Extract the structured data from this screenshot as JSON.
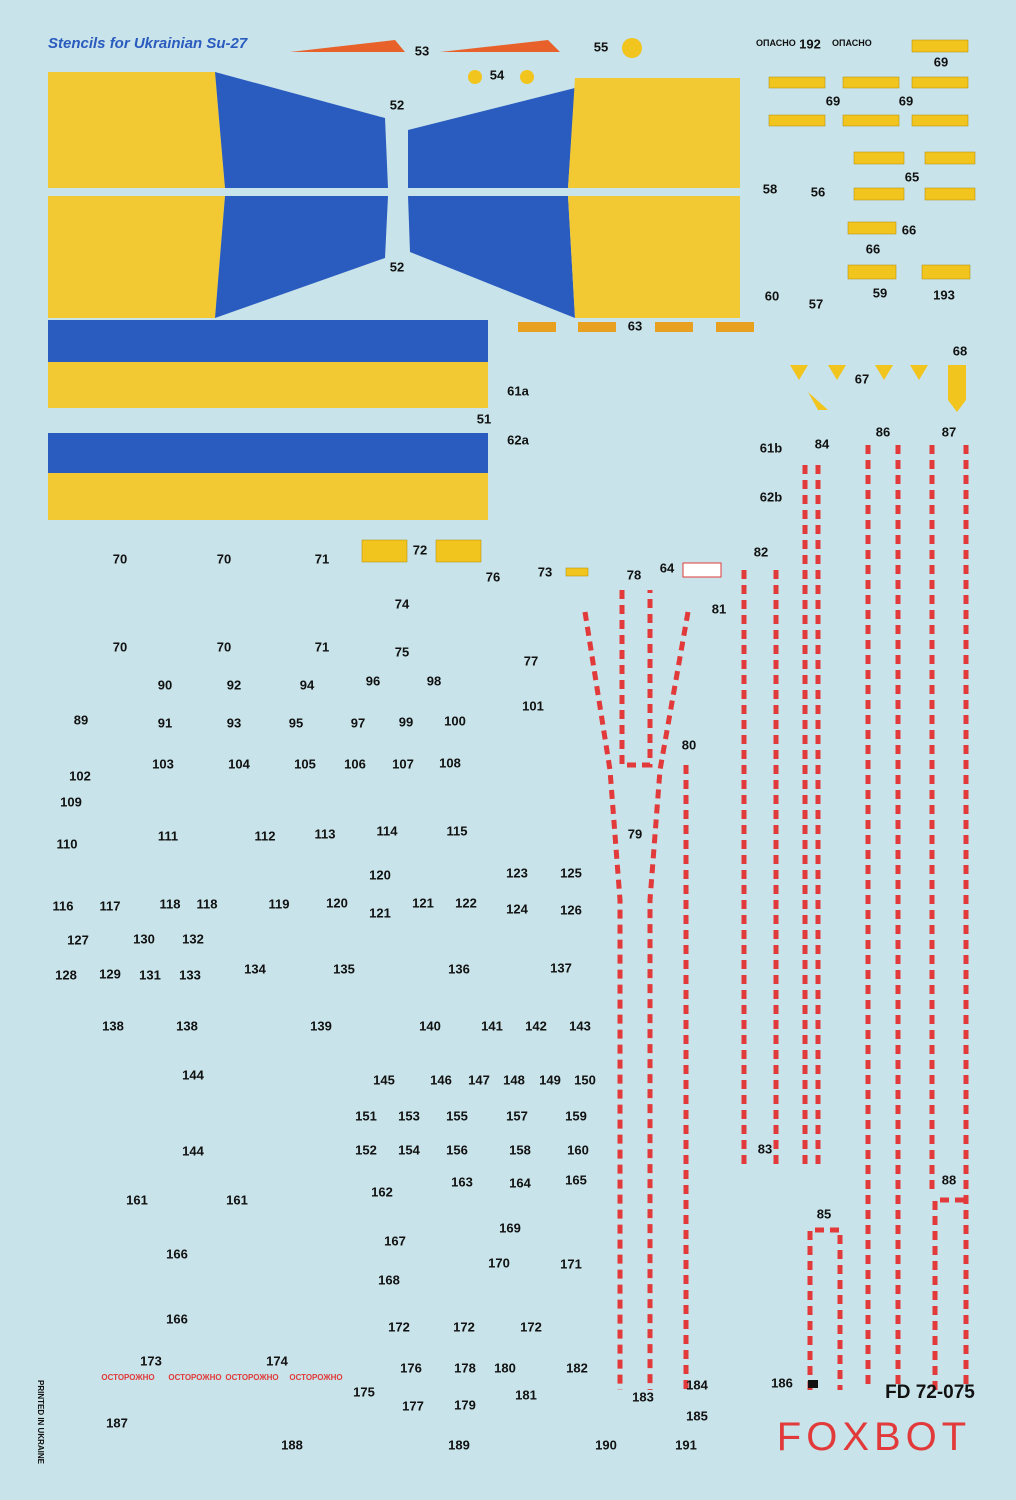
{
  "title": "Stencils for Ukrainian Su-27",
  "labels": [
    "53",
    "55",
    "54",
    "192",
    "69",
    "69",
    "69",
    "52",
    "52",
    "58",
    "56",
    "65",
    "66",
    "66",
    "60",
    "57",
    "59",
    "193",
    "63",
    "68",
    "67",
    "61a",
    "51",
    "62a",
    "61b",
    "84",
    "86",
    "87",
    "62b",
    "82",
    "70",
    "70",
    "71",
    "72",
    "76",
    "73",
    "78",
    "64",
    "81",
    "74",
    "70",
    "70",
    "71",
    "75",
    "77",
    "96",
    "98",
    "90",
    "92",
    "94",
    "101",
    "89",
    "91",
    "93",
    "95",
    "97",
    "99",
    "100",
    "80",
    "103",
    "104",
    "105",
    "106",
    "107",
    "108",
    "102",
    "109",
    "79",
    "111",
    "112",
    "113",
    "114",
    "115",
    "110",
    "120",
    "123",
    "125",
    "116",
    "117",
    "118",
    "118",
    "119",
    "120",
    "121",
    "121",
    "122",
    "124",
    "126",
    "127",
    "130",
    "132",
    "128",
    "129",
    "131",
    "133",
    "134",
    "135",
    "136",
    "137",
    "138",
    "138",
    "139",
    "140",
    "141",
    "142",
    "143",
    "144",
    "145",
    "146",
    "147",
    "148",
    "149",
    "150",
    "151",
    "153",
    "155",
    "157",
    "159",
    "83",
    "144",
    "152",
    "154",
    "156",
    "158",
    "160",
    "163",
    "164",
    "165",
    "88",
    "162",
    "161",
    "161",
    "85",
    "169",
    "167",
    "166",
    "170",
    "171",
    "168",
    "166",
    "172",
    "172",
    "172",
    "173",
    "174",
    "176",
    "178",
    "180",
    "182",
    "184",
    "186",
    "175",
    "181",
    "183",
    "177",
    "179",
    "185",
    "187",
    "188",
    "189",
    "190",
    "191"
  ],
  "danger_labels": [
    "ОПАСНО",
    "ОПАСНО"
  ],
  "caution_labels": [
    "ОСТОРОЖНО",
    "ОСТОРОЖНО",
    "ОСТОРОЖНО",
    "ОСТОРОЖНО"
  ],
  "product_code": "FD 72-075",
  "brand": "FOXBOT",
  "imprint": "PRINTED IN UKRAINE"
}
